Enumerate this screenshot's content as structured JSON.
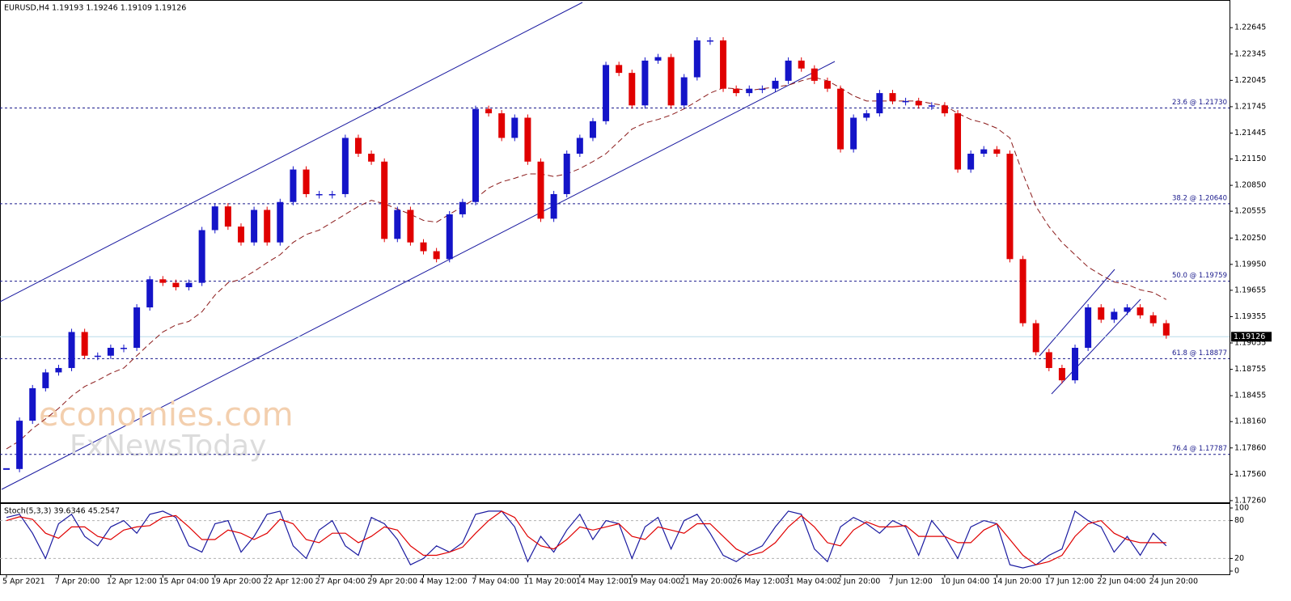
{
  "chart_data": [
    {
      "type": "candlestick",
      "title": "EURUSD,H4  1.19193 1.19246 1.19109 1.19126",
      "categories": [
        "5 Apr 2021",
        null,
        null,
        null,
        "7 Apr 20:00",
        null,
        null,
        null,
        "12 Apr 12:00",
        null,
        null,
        null,
        "15 Apr 04:00",
        null,
        null,
        null,
        "19 Apr 20:00",
        null,
        null,
        null,
        "22 Apr 12:00",
        null,
        null,
        null,
        "27 Apr 04:00",
        null,
        null,
        null,
        "29 Apr 20:00",
        null,
        null,
        null,
        "4 May 12:00",
        null,
        null,
        null,
        "7 May 04:00",
        null,
        null,
        null,
        "11 May 20:00",
        null,
        null,
        null,
        "14 May 12:00",
        null,
        null,
        null,
        "19 May 04:00",
        null,
        null,
        null,
        "21 May 20:00",
        null,
        null,
        null,
        "26 May 12:00",
        null,
        null,
        null,
        "31 May 04:00",
        null,
        null,
        null,
        "2 Jun 20:00",
        null,
        null,
        null,
        "7 Jun 12:00",
        null,
        null,
        null,
        "10 Jun 04:00",
        null,
        null,
        null,
        "14 Jun 20:00",
        null,
        null,
        null,
        "17 Jun 12:00",
        null,
        null,
        null,
        "22 Jun 04:00",
        null,
        null,
        null,
        "24 Jun 20:00",
        null
      ],
      "values": [
        1.1762,
        1.1817,
        1.1854,
        1.1872,
        1.1877,
        1.1918,
        1.1891,
        1.1891,
        1.19,
        1.19,
        1.1946,
        1.1978,
        1.1974,
        1.1969,
        1.1974,
        1.2034,
        1.2061,
        1.2038,
        1.202,
        1.2057,
        1.202,
        1.2066,
        1.2103,
        1.2075,
        1.2075,
        1.2075,
        1.2139,
        1.2121,
        1.2112,
        1.2024,
        1.2057,
        1.202,
        1.201,
        1.2001,
        1.2052,
        1.2066,
        1.2172,
        1.2167,
        1.2139,
        1.2162,
        1.2112,
        1.2047,
        1.2075,
        1.2121,
        1.2139,
        1.2158,
        1.2222,
        1.2213,
        1.2176,
        1.2227,
        1.2231,
        1.2176,
        1.2208,
        1.225,
        1.225,
        1.2195,
        1.219,
        1.2195,
        1.2195,
        1.2204,
        1.2227,
        1.2218,
        1.2204,
        1.2195,
        1.2126,
        1.2162,
        1.2167,
        1.219,
        1.2181,
        1.2181,
        1.2176,
        1.2176,
        1.2167,
        1.2103,
        1.2121,
        1.2126,
        1.2121,
        1.2001,
        1.1928,
        1.1895,
        1.1877,
        1.1863,
        1.19,
        1.1946,
        1.1932,
        1.1941,
        1.1946,
        1.1937,
        1.1928,
        1.1914
      ],
      "ma_values": [
        1.1785,
        1.1794,
        1.1808,
        1.1819,
        1.1831,
        1.1845,
        1.1856,
        1.1863,
        1.1871,
        1.1877,
        1.1891,
        1.1905,
        1.1918,
        1.1926,
        1.193,
        1.1941,
        1.196,
        1.1974,
        1.1978,
        1.1987,
        1.1997,
        1.2006,
        1.202,
        1.2029,
        1.2034,
        1.2043,
        1.2052,
        1.2061,
        1.2068,
        1.2064,
        1.2058,
        1.2052,
        1.2045,
        1.2043,
        1.2052,
        1.2061,
        1.207,
        1.2082,
        1.2089,
        1.2093,
        1.2098,
        1.2098,
        1.2095,
        1.2098,
        1.2104,
        1.2112,
        1.2121,
        1.2135,
        1.2149,
        1.2156,
        1.216,
        1.2165,
        1.2172,
        1.2181,
        1.219,
        1.2196,
        1.2195,
        1.2193,
        1.2195,
        1.2197,
        1.2199,
        1.2204,
        1.2208,
        1.2204,
        1.2196,
        1.2187,
        1.2181,
        1.2181,
        1.2181,
        1.2181,
        1.2181,
        1.2178,
        1.2176,
        1.2167,
        1.216,
        1.2156,
        1.215,
        1.2139,
        1.2098,
        1.2061,
        1.2038,
        1.202,
        1.2006,
        1.1992,
        1.1983,
        1.1975,
        1.1972,
        1.1966,
        1.1963,
        1.1955
      ],
      "up_color": "#1414c8",
      "down_color": "#e00000",
      "ma_color": "#8b1a1a",
      "ylim": [
        1.1725,
        1.2296
      ],
      "yticks": [
        1.22645,
        1.22345,
        1.22045,
        1.21745,
        1.21445,
        {
          "value": 1.2115,
          "label": "1.21150"
        },
        {
          "value": 1.2085,
          "label": "1.20850"
        },
        1.20555,
        {
          "value": 1.2025,
          "label": "1.20250"
        },
        {
          "value": 1.1995,
          "label": "1.19950"
        },
        1.19655,
        1.19355,
        1.19055,
        1.18755,
        1.18455,
        {
          "value": 1.1816,
          "label": "1.18160"
        },
        {
          "value": 1.1786,
          "label": "1.17860"
        },
        {
          "value": 1.1756,
          "label": "1.17560"
        },
        {
          "value": 1.1726,
          "label": "1.17260"
        }
      ],
      "fib_levels": [
        {
          "value": 1.2173,
          "label": "23.6 @ 1.21730"
        },
        {
          "value": 1.2064,
          "label": "38.2 @ 1.20640"
        },
        {
          "value": 1.19759,
          "label": "50.0 @ 1.19759"
        },
        {
          "value": 1.18877,
          "label": "61.8 @ 1.18877"
        },
        {
          "value": 1.17787,
          "label": "76.4 @ 1.17787"
        }
      ],
      "fib_color": "#1a1a8c",
      "current_price": {
        "value": 1.19126,
        "label": "1.19126"
      },
      "watermarks": [
        "economies.com",
        "FxNewsToday"
      ]
    },
    {
      "type": "line",
      "title": "Stoch(5,3,3) 39.6346 45.2547",
      "series": [
        {
          "color": "#1a1aa0",
          "values": [
            85,
            90,
            60,
            20,
            75,
            90,
            55,
            40,
            70,
            80,
            60,
            90,
            95,
            85,
            40,
            30,
            75,
            80,
            30,
            55,
            90,
            95,
            40,
            20,
            65,
            80,
            40,
            25,
            85,
            75,
            50,
            10,
            20,
            40,
            30,
            45,
            90,
            95,
            95,
            70,
            15,
            55,
            30,
            65,
            90,
            50,
            80,
            75,
            20,
            70,
            85,
            35,
            80,
            90,
            60,
            25,
            15,
            30,
            40,
            70,
            95,
            90,
            35,
            15,
            70,
            85,
            75,
            60,
            80,
            70,
            25,
            80,
            55,
            20,
            70,
            80,
            75,
            10,
            5,
            10,
            25,
            35,
            95,
            80,
            70,
            30,
            55,
            25,
            60,
            40
          ]
        },
        {
          "color": "#e00000",
          "values": [
            80,
            86,
            82,
            60,
            52,
            70,
            70,
            55,
            50,
            65,
            70,
            72,
            85,
            88,
            70,
            50,
            50,
            65,
            60,
            50,
            60,
            82,
            75,
            50,
            45,
            60,
            60,
            45,
            55,
            70,
            65,
            40,
            25,
            25,
            30,
            38,
            60,
            80,
            95,
            85,
            55,
            40,
            35,
            50,
            70,
            65,
            70,
            75,
            55,
            50,
            70,
            65,
            60,
            75,
            75,
            55,
            35,
            25,
            30,
            45,
            70,
            88,
            70,
            45,
            40,
            65,
            78,
            70,
            70,
            72,
            55,
            55,
            55,
            45,
            45,
            65,
            75,
            50,
            25,
            10,
            15,
            25,
            55,
            75,
            80,
            60,
            50,
            45,
            45,
            45
          ]
        }
      ],
      "ylim": [
        0,
        100
      ],
      "yticks": [
        0,
        20,
        80,
        100
      ],
      "levels": [
        20,
        80
      ]
    }
  ]
}
